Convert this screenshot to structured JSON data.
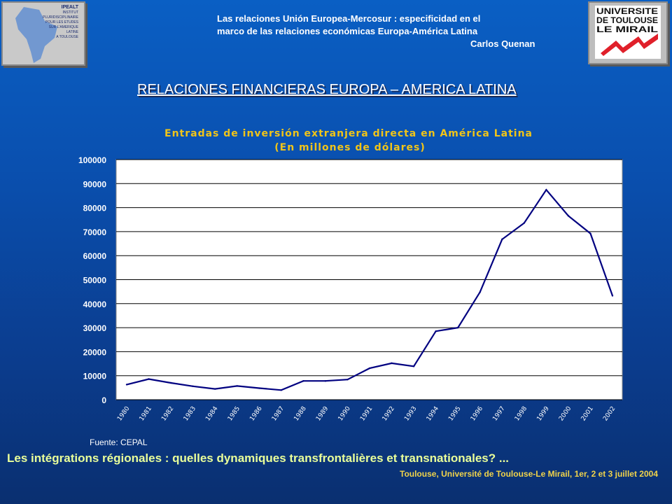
{
  "header": {
    "line1": "Las relaciones Unión Europea-Mercosur : especificidad en el",
    "line2": "marco de las relaciones económicas Europa-América Latina",
    "author": "Carlos Quenan"
  },
  "logos": {
    "left_text": [
      "IPEALT",
      "INSTITUT",
      "PLURIDISCIPLINAIRE",
      "POUR LES ETUDES",
      "SUR L'AMERIQUE",
      "LATINE",
      "A TOULOUSE"
    ],
    "right_text": [
      "UNIVERSITE",
      "DE TOULOUSE",
      "LE MIRAIL"
    ]
  },
  "main_title": "RELACIONES FINANCIERAS EUROPA – AMERICA LATINA",
  "source": "Fuente: CEPAL",
  "footer": {
    "line1": "Les intégrations régionales : quelles dynamiques transfrontalières et transnationales? ...",
    "line2": "Toulouse, Université de Toulouse-Le Mirail, 1er, 2 et 3 juillet 2004"
  },
  "colors": {
    "line": "#000080",
    "chart_title": "#f0c419",
    "plot_bg": "#ffffff",
    "background_top": "#0a5fc4",
    "background_bottom": "#0a2f70"
  },
  "chart_data": {
    "type": "line",
    "title": "Entradas de inversión extranjera directa en América Latina",
    "subtitle": "(En millones de dólares)",
    "xlabel": "",
    "ylabel": "",
    "ylim": [
      0,
      100000
    ],
    "yticks": [
      0,
      10000,
      20000,
      30000,
      40000,
      50000,
      60000,
      70000,
      80000,
      90000,
      100000
    ],
    "grid": true,
    "legend": "none",
    "categories": [
      "1980",
      "1981",
      "1982",
      "1983",
      "1984",
      "1985",
      "1986",
      "1987",
      "1988",
      "1989",
      "1990",
      "1991",
      "1992",
      "1993",
      "1994",
      "1995",
      "1996",
      "1997",
      "1998",
      "1999",
      "2000",
      "2001",
      "2002"
    ],
    "values": [
      6300,
      8600,
      7000,
      5600,
      4500,
      5700,
      4800,
      4000,
      7800,
      7800,
      8400,
      13100,
      15200,
      13900,
      28500,
      30000,
      44800,
      66800,
      73600,
      87400,
      76600,
      69200,
      43300
    ]
  }
}
